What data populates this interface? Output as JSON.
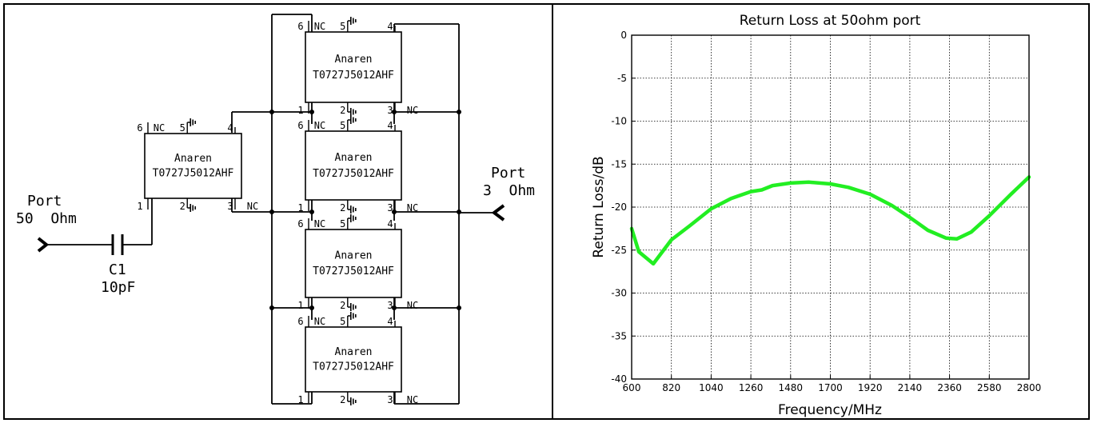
{
  "schematic": {
    "port_in_label": "Port",
    "port_in_value": "50  Ohm",
    "port_out_label": "Port",
    "port_out_value": "3  Ohm",
    "cap_name": "C1",
    "cap_value": "10pF",
    "chip_brand": "Anaren",
    "chip_part": "T0727J5012AHF",
    "nc": "NC",
    "pins": {
      "p1": "1",
      "p2": "2",
      "p3": "3",
      "p4": "4",
      "p5": "5",
      "p6": "6"
    }
  },
  "chart_data": {
    "type": "line",
    "title": "Return Loss at 50ohm port",
    "xlabel": "Frequency/MHz",
    "ylabel": "Return Loss/dB",
    "xlim": [
      600,
      2800
    ],
    "ylim": [
      -40,
      0
    ],
    "xticks": [
      600,
      820,
      1040,
      1260,
      1480,
      1700,
      1920,
      2140,
      2360,
      2580,
      2800
    ],
    "yticks": [
      0,
      -5,
      -10,
      -15,
      -20,
      -25,
      -30,
      -35,
      -40
    ],
    "grid": true,
    "series": [
      {
        "color": "#22ee22",
        "x": [
          600,
          640,
          720,
          820,
          920,
          1040,
          1150,
          1260,
          1320,
          1380,
          1480,
          1580,
          1700,
          1800,
          1920,
          2040,
          2140,
          2240,
          2340,
          2400,
          2480,
          2580,
          2700,
          2800
        ],
        "y": [
          -22.5,
          -25.2,
          -26.6,
          -23.8,
          -22.2,
          -20.2,
          -19.0,
          -18.2,
          -18.0,
          -17.5,
          -17.2,
          -17.1,
          -17.3,
          -17.7,
          -18.5,
          -19.8,
          -21.2,
          -22.7,
          -23.6,
          -23.7,
          -22.9,
          -21.0,
          -18.5,
          -16.5
        ]
      }
    ]
  }
}
